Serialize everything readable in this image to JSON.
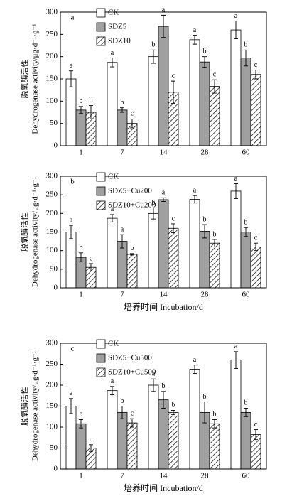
{
  "chart_data": [
    {
      "type": "bar",
      "panel_label": "a",
      "ylabel": [
        "脱氢酶活性",
        "Dehydrogenase activity/μg·d⁻¹·g⁻¹"
      ],
      "categories": [
        "1",
        "7",
        "14",
        "28",
        "60"
      ],
      "ylim": [
        0,
        300
      ],
      "yticks": [
        0,
        50,
        100,
        150,
        200,
        250,
        300
      ],
      "series": [
        {
          "name": "CK",
          "color": "#ffffff",
          "hatch": false,
          "values": [
            150,
            187,
            200,
            238,
            260
          ],
          "errors": [
            18,
            10,
            15,
            10,
            20
          ],
          "letters": [
            "a",
            "a",
            "b",
            "a",
            "a"
          ]
        },
        {
          "name": "SDZ5",
          "color": "#a0a0a0",
          "hatch": false,
          "values": [
            80,
            80,
            268,
            188,
            197
          ],
          "errors": [
            8,
            5,
            25,
            12,
            18
          ],
          "letters": [
            "b",
            "b",
            "a",
            "b",
            "b"
          ]
        },
        {
          "name": "SDZ10",
          "color": "#ffffff",
          "hatch": true,
          "values": [
            75,
            50,
            120,
            133,
            160
          ],
          "errors": [
            15,
            10,
            25,
            15,
            10
          ],
          "letters": [
            "b",
            "c",
            "c",
            "c",
            "c"
          ]
        }
      ]
    },
    {
      "type": "bar",
      "panel_label": "b",
      "ylabel": [
        "脱氢酶活性",
        "Dehydrogenase activity/μg·d⁻¹·g⁻¹"
      ],
      "xlabel": "培养时间 Incubation/d",
      "categories": [
        "1",
        "7",
        "14",
        "28",
        "60"
      ],
      "ylim": [
        0,
        300
      ],
      "yticks": [
        0,
        50,
        100,
        150,
        200,
        250,
        300
      ],
      "series": [
        {
          "name": "CK",
          "color": "#ffffff",
          "hatch": false,
          "values": [
            150,
            187,
            200,
            238,
            260
          ],
          "errors": [
            18,
            10,
            15,
            10,
            20
          ],
          "letters": [
            "a",
            "a",
            "b",
            "a",
            "a"
          ]
        },
        {
          "name": "SDZ5+Cu200",
          "color": "#a0a0a0",
          "hatch": false,
          "values": [
            82,
            125,
            237,
            152,
            150
          ],
          "errors": [
            12,
            18,
            5,
            18,
            12
          ],
          "letters": [
            "b",
            "a",
            "a",
            "b",
            "b"
          ]
        },
        {
          "name": "SDZ10+Cu200",
          "color": "#ffffff",
          "hatch": true,
          "values": [
            55,
            90,
            160,
            120,
            110
          ],
          "errors": [
            10,
            2,
            12,
            10,
            10
          ],
          "letters": [
            "c",
            "b",
            "c",
            "b",
            "c"
          ]
        }
      ]
    },
    {
      "type": "bar",
      "panel_label": "c",
      "ylabel": [
        "脱氢酶活性",
        "Dehydrogenase activity/μg·d⁻¹·g⁻¹"
      ],
      "xlabel": "培养时间 Incubation/d",
      "categories": [
        "1",
        "7",
        "14",
        "28",
        "60"
      ],
      "ylim": [
        0,
        300
      ],
      "yticks": [
        0,
        50,
        100,
        150,
        200,
        250,
        300
      ],
      "series": [
        {
          "name": "CK",
          "color": "#ffffff",
          "hatch": false,
          "values": [
            150,
            187,
            200,
            238,
            260
          ],
          "errors": [
            18,
            10,
            15,
            10,
            20
          ],
          "letters": [
            "a",
            "a",
            "a",
            "a",
            "a"
          ]
        },
        {
          "name": "SDZ5+Cu500",
          "color": "#a0a0a0",
          "hatch": false,
          "values": [
            108,
            135,
            165,
            135,
            135
          ],
          "errors": [
            10,
            15,
            20,
            25,
            10
          ],
          "letters": [
            "b",
            "b",
            "b",
            "b",
            "b"
          ]
        },
        {
          "name": "SDZ10+Cu500",
          "color": "#ffffff",
          "hatch": true,
          "values": [
            50,
            110,
            135,
            108,
            82
          ],
          "errors": [
            8,
            10,
            5,
            10,
            12
          ],
          "letters": [
            "c",
            "c",
            "b",
            "b",
            "c"
          ]
        }
      ]
    }
  ]
}
